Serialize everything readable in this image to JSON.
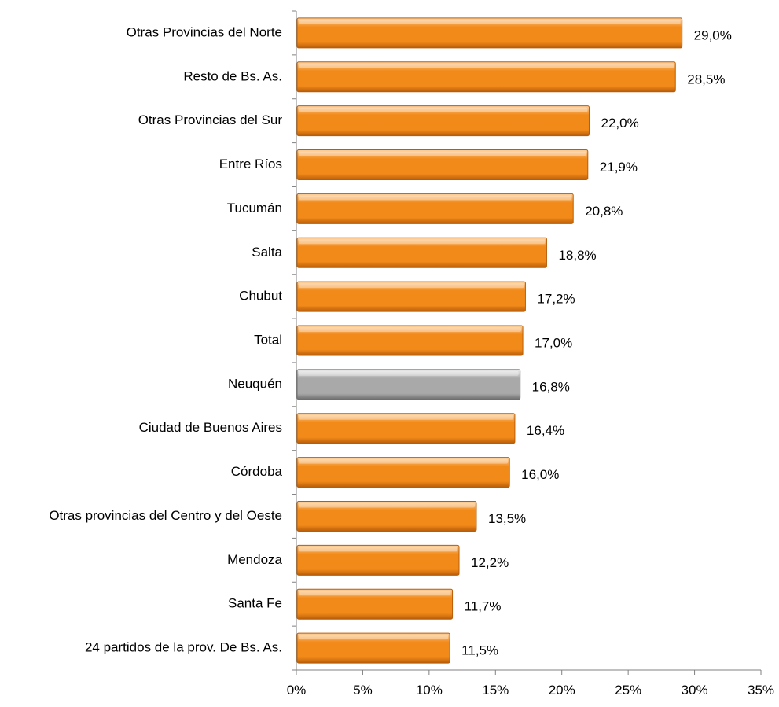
{
  "chart_data": {
    "type": "bar",
    "orientation": "horizontal",
    "title": "",
    "xlabel": "",
    "ylabel": "",
    "categories": [
      "Otras Provincias del Norte",
      "Resto de Bs. As.",
      "Otras Provincias del Sur",
      "Entre Ríos",
      "Tucumán",
      "Salta",
      "Chubut",
      "Total",
      "Neuquén",
      "Ciudad de Buenos Aires",
      "Córdoba",
      "Otras provincias del Centro y del Oeste",
      "Mendoza",
      "Santa Fe",
      "24 partidos de la prov. De Bs. As."
    ],
    "values": [
      29.0,
      28.5,
      22.0,
      21.9,
      20.8,
      18.8,
      17.2,
      17.0,
      16.8,
      16.4,
      16.0,
      13.5,
      12.2,
      11.7,
      11.5
    ],
    "value_labels": [
      "29,0%",
      "28,5%",
      "22,0%",
      "21,9%",
      "20,8%",
      "18,8%",
      "17,2%",
      "17,0%",
      "16,8%",
      "16,4%",
      "16,0%",
      "13,5%",
      "12,2%",
      "11,7%",
      "11,5%"
    ],
    "highlight_category": "Neuquén",
    "xlim": [
      0,
      35
    ],
    "x_ticks": [
      0,
      5,
      10,
      15,
      20,
      25,
      30,
      35
    ],
    "x_tick_labels": [
      "0%",
      "5%",
      "10%",
      "15%",
      "20%",
      "25%",
      "30%",
      "35%"
    ],
    "grid": false,
    "legend": "none",
    "colors": {
      "bar": "#f28a1a",
      "bar_light": "#fdd2a0",
      "bar_dark": "#b85d08",
      "highlight": "#a9a9a9",
      "highlight_light": "#ececec",
      "highlight_dark": "#6e6e6e",
      "axis": "#808080"
    }
  }
}
